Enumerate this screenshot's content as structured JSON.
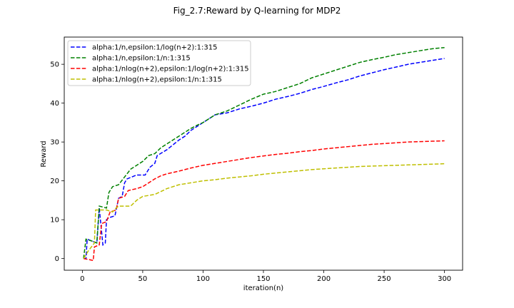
{
  "chart_data": {
    "type": "line",
    "title": "Fig_2.7:Reward by Q-learning for MDP2",
    "xlabel": "iteration(n)",
    "ylabel": "Reward",
    "xlim": [
      -15,
      315
    ],
    "ylim": [
      -3,
      57
    ],
    "xticks": [
      0,
      50,
      100,
      150,
      200,
      250,
      300
    ],
    "yticks": [
      0,
      10,
      20,
      30,
      40,
      50
    ],
    "grid": false,
    "legend_position": "top-left",
    "series": [
      {
        "name": "alpha:1/n,epsilon:1/log(n+2):1:315",
        "color": "#0000ff",
        "points": [
          [
            1,
            0
          ],
          [
            3,
            0
          ],
          [
            4,
            5
          ],
          [
            8,
            4.5
          ],
          [
            12,
            4
          ],
          [
            14,
            13
          ],
          [
            17,
            3.5
          ],
          [
            19,
            4
          ],
          [
            20,
            10
          ],
          [
            22,
            10.5
          ],
          [
            27,
            11
          ],
          [
            30,
            15.5
          ],
          [
            33,
            16
          ],
          [
            35,
            19.5
          ],
          [
            37,
            20.5
          ],
          [
            45,
            21.5
          ],
          [
            52,
            21.5
          ],
          [
            56,
            23.5
          ],
          [
            60,
            24.5
          ],
          [
            62,
            26.5
          ],
          [
            70,
            28
          ],
          [
            76,
            29.5
          ],
          [
            80,
            30.5
          ],
          [
            85,
            31.5
          ],
          [
            90,
            33
          ],
          [
            95,
            34
          ],
          [
            100,
            35
          ],
          [
            105,
            36
          ],
          [
            110,
            37
          ],
          [
            120,
            37.5
          ],
          [
            130,
            38.5
          ],
          [
            140,
            39.2
          ],
          [
            150,
            40
          ],
          [
            160,
            41
          ],
          [
            170,
            41.7
          ],
          [
            180,
            42.5
          ],
          [
            190,
            43.5
          ],
          [
            200,
            44.3
          ],
          [
            210,
            45.2
          ],
          [
            220,
            46
          ],
          [
            230,
            47
          ],
          [
            240,
            47.8
          ],
          [
            250,
            48.6
          ],
          [
            260,
            49.3
          ],
          [
            270,
            50
          ],
          [
            280,
            50.5
          ],
          [
            290,
            51
          ],
          [
            300,
            51.5
          ]
        ]
      },
      {
        "name": "alpha:1/n,epsilon:1/n:1:315",
        "color": "#008000",
        "points": [
          [
            1,
            0
          ],
          [
            3,
            5
          ],
          [
            8,
            4.5
          ],
          [
            12,
            4
          ],
          [
            14,
            13.5
          ],
          [
            20,
            13
          ],
          [
            22,
            17
          ],
          [
            25,
            18.5
          ],
          [
            30,
            19
          ],
          [
            35,
            21
          ],
          [
            40,
            23
          ],
          [
            45,
            24
          ],
          [
            50,
            25
          ],
          [
            55,
            26.5
          ],
          [
            60,
            27
          ],
          [
            65,
            28.5
          ],
          [
            70,
            29.5
          ],
          [
            75,
            30.5
          ],
          [
            80,
            31.5
          ],
          [
            85,
            32.5
          ],
          [
            90,
            33.5
          ],
          [
            95,
            34.3
          ],
          [
            100,
            35
          ],
          [
            105,
            36
          ],
          [
            110,
            37
          ],
          [
            120,
            38
          ],
          [
            130,
            39.5
          ],
          [
            140,
            41
          ],
          [
            150,
            42.3
          ],
          [
            160,
            43
          ],
          [
            170,
            44
          ],
          [
            180,
            45
          ],
          [
            190,
            46.5
          ],
          [
            200,
            47.5
          ],
          [
            210,
            48.5
          ],
          [
            220,
            49.5
          ],
          [
            230,
            50.5
          ],
          [
            240,
            51.2
          ],
          [
            250,
            51.8
          ],
          [
            260,
            52.5
          ],
          [
            270,
            53
          ],
          [
            280,
            53.5
          ],
          [
            290,
            54
          ],
          [
            300,
            54.3
          ]
        ]
      },
      {
        "name": "alpha:1/nlog(n+2),epsilon:1/log(n+2):1:315",
        "color": "#ff0000",
        "points": [
          [
            1,
            0
          ],
          [
            6,
            -0.3
          ],
          [
            9,
            -0.5
          ],
          [
            10,
            3
          ],
          [
            14,
            3.5
          ],
          [
            16,
            9
          ],
          [
            20,
            9.5
          ],
          [
            23,
            12
          ],
          [
            28,
            12.5
          ],
          [
            30,
            15.5
          ],
          [
            35,
            16
          ],
          [
            38,
            17.5
          ],
          [
            45,
            18
          ],
          [
            50,
            18.5
          ],
          [
            55,
            19.5
          ],
          [
            60,
            20.5
          ],
          [
            65,
            21.3
          ],
          [
            70,
            21.8
          ],
          [
            80,
            22.5
          ],
          [
            90,
            23.3
          ],
          [
            100,
            24
          ],
          [
            110,
            24.5
          ],
          [
            120,
            25
          ],
          [
            130,
            25.5
          ],
          [
            140,
            26
          ],
          [
            150,
            26.4
          ],
          [
            160,
            26.8
          ],
          [
            170,
            27.1
          ],
          [
            180,
            27.5
          ],
          [
            190,
            27.8
          ],
          [
            200,
            28.2
          ],
          [
            210,
            28.5
          ],
          [
            220,
            28.8
          ],
          [
            230,
            29.1
          ],
          [
            240,
            29.4
          ],
          [
            250,
            29.6
          ],
          [
            260,
            29.8
          ],
          [
            270,
            30
          ],
          [
            280,
            30.1
          ],
          [
            290,
            30.2
          ],
          [
            300,
            30.3
          ]
        ]
      },
      {
        "name": "alpha:1/nlog(n+2),epsilon:1/n:1:315",
        "color": "#bfbf00",
        "points": [
          [
            1,
            0
          ],
          [
            5,
            2
          ],
          [
            10,
            4
          ],
          [
            11,
            12.5
          ],
          [
            15,
            12.5
          ],
          [
            20,
            12.5
          ],
          [
            25,
            12
          ],
          [
            28,
            13
          ],
          [
            30,
            13.5
          ],
          [
            40,
            13.5
          ],
          [
            45,
            15
          ],
          [
            50,
            16
          ],
          [
            60,
            16.5
          ],
          [
            70,
            18
          ],
          [
            80,
            19
          ],
          [
            90,
            19.5
          ],
          [
            100,
            20
          ],
          [
            110,
            20.3
          ],
          [
            120,
            20.7
          ],
          [
            130,
            21
          ],
          [
            140,
            21.3
          ],
          [
            150,
            21.7
          ],
          [
            160,
            22
          ],
          [
            170,
            22.3
          ],
          [
            180,
            22.6
          ],
          [
            190,
            22.9
          ],
          [
            200,
            23.1
          ],
          [
            210,
            23.3
          ],
          [
            220,
            23.5
          ],
          [
            230,
            23.7
          ],
          [
            240,
            23.8
          ],
          [
            250,
            23.9
          ],
          [
            260,
            24
          ],
          [
            270,
            24.1
          ],
          [
            280,
            24.2
          ],
          [
            290,
            24.3
          ],
          [
            300,
            24.4
          ]
        ]
      }
    ]
  }
}
